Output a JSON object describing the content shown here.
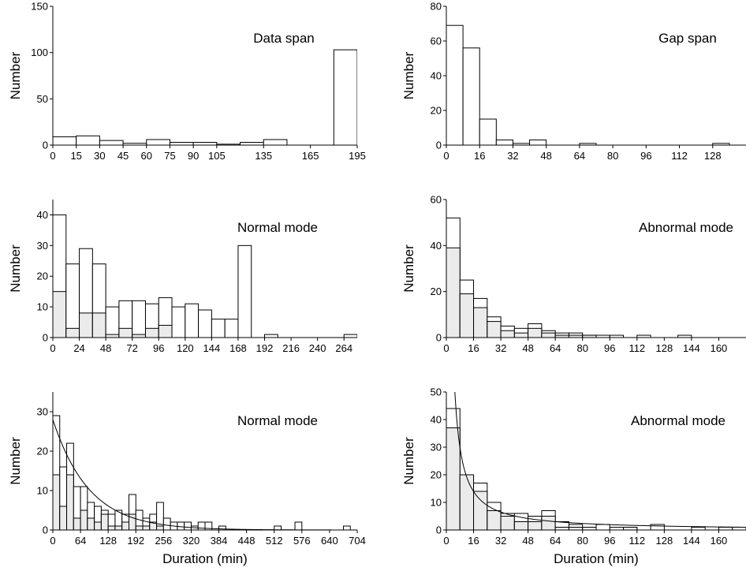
{
  "chart_data": [
    {
      "type": "bar",
      "panel": "top-left",
      "title": "Data span",
      "ylabel": "Number",
      "xlabel": "",
      "xlim": [
        0,
        195
      ],
      "ylim": [
        0,
        150
      ],
      "xticks": [
        "0",
        "15",
        "30",
        "45",
        "60",
        "75",
        "90",
        "105",
        "135",
        "165",
        "195"
      ],
      "xtick_values": [
        0,
        15,
        30,
        45,
        60,
        75,
        90,
        105,
        135,
        165,
        195
      ],
      "yticks": [
        0,
        50,
        100,
        150
      ],
      "bin_width": 15,
      "bin_starts": [
        0,
        15,
        30,
        45,
        60,
        75,
        90,
        105,
        120,
        135,
        150,
        165,
        180
      ],
      "values": [
        9,
        10,
        5,
        2,
        6,
        3,
        3,
        1,
        3,
        6,
        0,
        0,
        103
      ]
    },
    {
      "type": "bar",
      "panel": "top-right",
      "title": "Gap span",
      "ylabel": "Number",
      "xlabel": "",
      "xlim": [
        0,
        144
      ],
      "ylim": [
        0,
        80
      ],
      "xticks": [
        "0",
        "16",
        "32",
        "48",
        "64",
        "80",
        "96",
        "112",
        "128"
      ],
      "xtick_values": [
        0,
        16,
        32,
        48,
        64,
        80,
        96,
        112,
        128
      ],
      "yticks": [
        0,
        20,
        40,
        60,
        80
      ],
      "bin_width": 8,
      "bin_starts": [
        0,
        8,
        16,
        24,
        32,
        40,
        48,
        56,
        64,
        72,
        80,
        88,
        96,
        104,
        112,
        120,
        128,
        136
      ],
      "values": [
        69,
        56,
        15,
        3,
        1,
        3,
        0,
        0,
        1,
        0,
        0,
        0,
        0,
        0,
        0,
        0,
        1,
        0
      ]
    },
    {
      "type": "bar",
      "panel": "middle-left",
      "title": "Normal mode",
      "ylabel": "Number",
      "xlabel": "",
      "xlim": [
        0,
        276
      ],
      "ylim": [
        0,
        45
      ],
      "xticks": [
        "0",
        "24",
        "48",
        "72",
        "96",
        "120",
        "144",
        "168",
        "192",
        "216",
        "240",
        "264"
      ],
      "xtick_values": [
        0,
        24,
        48,
        72,
        96,
        120,
        144,
        168,
        192,
        216,
        240,
        264
      ],
      "yticks": [
        0,
        10,
        20,
        30,
        40
      ],
      "bin_width": 12,
      "bin_starts": [
        0,
        12,
        24,
        36,
        48,
        60,
        72,
        84,
        96,
        108,
        120,
        132,
        144,
        156,
        168,
        180,
        192,
        204,
        216,
        228,
        240,
        252,
        264
      ],
      "series": [
        {
          "role": "total",
          "values": [
            40,
            24,
            29,
            24,
            10,
            12,
            12,
            11,
            13,
            10,
            11,
            9,
            6,
            6,
            30,
            0,
            1,
            0,
            0,
            0,
            0,
            0,
            1
          ]
        },
        {
          "role": "shaded",
          "values": [
            15,
            3,
            8,
            8,
            1,
            3,
            1,
            3,
            4,
            0,
            0,
            0,
            0,
            0,
            0,
            0,
            0,
            0,
            0,
            0,
            0,
            0,
            0
          ]
        }
      ]
    },
    {
      "type": "bar",
      "panel": "middle-right",
      "title": "Abnormal mode",
      "ylabel": "Number",
      "xlabel": "",
      "xlim": [
        0,
        176
      ],
      "ylim": [
        0,
        60
      ],
      "xticks": [
        "0",
        "16",
        "32",
        "48",
        "64",
        "80",
        "96",
        "112",
        "128",
        "144",
        "160"
      ],
      "xtick_values": [
        0,
        16,
        32,
        48,
        64,
        80,
        96,
        112,
        128,
        144,
        160
      ],
      "yticks": [
        0,
        20,
        40,
        60
      ],
      "bin_width": 8,
      "bin_starts": [
        0,
        8,
        16,
        24,
        32,
        40,
        48,
        56,
        64,
        72,
        80,
        88,
        96,
        104,
        112,
        120,
        128,
        136,
        144,
        152,
        160,
        168
      ],
      "series": [
        {
          "role": "total",
          "values": [
            52,
            25,
            17,
            9,
            5,
            4,
            6,
            3,
            2,
            2,
            1,
            1,
            1,
            0,
            1,
            0,
            0,
            1,
            0,
            0,
            0,
            0
          ]
        },
        {
          "role": "shaded",
          "values": [
            39,
            19,
            13,
            7,
            3,
            2,
            4,
            2,
            1,
            1,
            1,
            0,
            0,
            0,
            0,
            0,
            0,
            0,
            0,
            0,
            0,
            0
          ]
        }
      ]
    },
    {
      "type": "bar",
      "panel": "bottom-left",
      "title": "Normal mode",
      "ylabel": "Number",
      "xlabel": "Duration (min)",
      "xlim": [
        0,
        704
      ],
      "ylim": [
        0,
        35
      ],
      "xticks": [
        "0",
        "64",
        "128",
        "192",
        "256",
        "320",
        "384",
        "448",
        "512",
        "576",
        "640",
        "704"
      ],
      "xtick_values": [
        0,
        64,
        128,
        192,
        256,
        320,
        384,
        448,
        512,
        576,
        640,
        704
      ],
      "yticks": [
        0,
        10,
        20,
        30
      ],
      "bin_width": 16,
      "bin_starts": [
        0,
        16,
        32,
        48,
        64,
        80,
        96,
        112,
        128,
        144,
        160,
        176,
        192,
        208,
        224,
        240,
        256,
        272,
        288,
        304,
        320,
        336,
        352,
        368,
        384,
        400,
        416,
        432,
        448,
        464,
        480,
        496,
        512,
        528,
        544,
        560,
        576,
        592,
        608,
        624,
        640,
        656,
        672,
        688
      ],
      "series": [
        {
          "role": "total",
          "values": [
            29,
            16,
            22,
            11,
            11,
            7,
            6,
            5,
            4,
            5,
            4,
            9,
            5,
            3,
            4,
            7,
            3,
            2,
            2,
            2,
            1,
            2,
            2,
            0,
            1,
            0,
            0,
            0,
            0,
            0,
            0,
            0,
            1,
            0,
            0,
            2,
            0,
            0,
            0,
            0,
            0,
            0,
            1,
            0
          ]
        },
        {
          "role": "shaded",
          "values": [
            14,
            6,
            14,
            3,
            5,
            3,
            2,
            4,
            1,
            1,
            2,
            4,
            1,
            1,
            2,
            1,
            0,
            0,
            0,
            0,
            0,
            0,
            0,
            0,
            0,
            0,
            0,
            0,
            0,
            0,
            0,
            0,
            0,
            0,
            0,
            0,
            0,
            0,
            0,
            0,
            0,
            0,
            0,
            0
          ]
        }
      ],
      "fit_curve": {
        "type": "exponential",
        "y0": 28,
        "x_scale": 84
      }
    },
    {
      "type": "bar",
      "panel": "bottom-right",
      "title": "Abnormal mode",
      "ylabel": "Number",
      "xlabel": "Duration (min)",
      "xlim": [
        0,
        176
      ],
      "ylim": [
        0,
        50
      ],
      "xticks": [
        "0",
        "16",
        "32",
        "48",
        "64",
        "80",
        "96",
        "112",
        "128",
        "144",
        "160"
      ],
      "xtick_values": [
        0,
        16,
        32,
        48,
        64,
        80,
        96,
        112,
        128,
        144,
        160
      ],
      "yticks": [
        0,
        10,
        20,
        30,
        40,
        50
      ],
      "bin_width": 8,
      "bin_starts": [
        0,
        8,
        16,
        24,
        32,
        40,
        48,
        56,
        64,
        72,
        80,
        88,
        96,
        104,
        112,
        120,
        128,
        136,
        144,
        152,
        160,
        168
      ],
      "series": [
        {
          "role": "total",
          "values": [
            44,
            20,
            17,
            10,
            6,
            6,
            5,
            7,
            3,
            2,
            1,
            2,
            1,
            1,
            0,
            2,
            0,
            0,
            1,
            0,
            1,
            1
          ]
        },
        {
          "role": "shaded",
          "values": [
            37,
            20,
            14,
            7,
            5,
            3,
            3,
            5,
            1,
            1,
            1,
            0,
            0,
            1,
            0,
            0,
            0,
            0,
            0,
            0,
            0,
            0
          ]
        }
      ],
      "fit_curve": {
        "type": "power",
        "a": 294,
        "b": 1.1
      }
    }
  ]
}
